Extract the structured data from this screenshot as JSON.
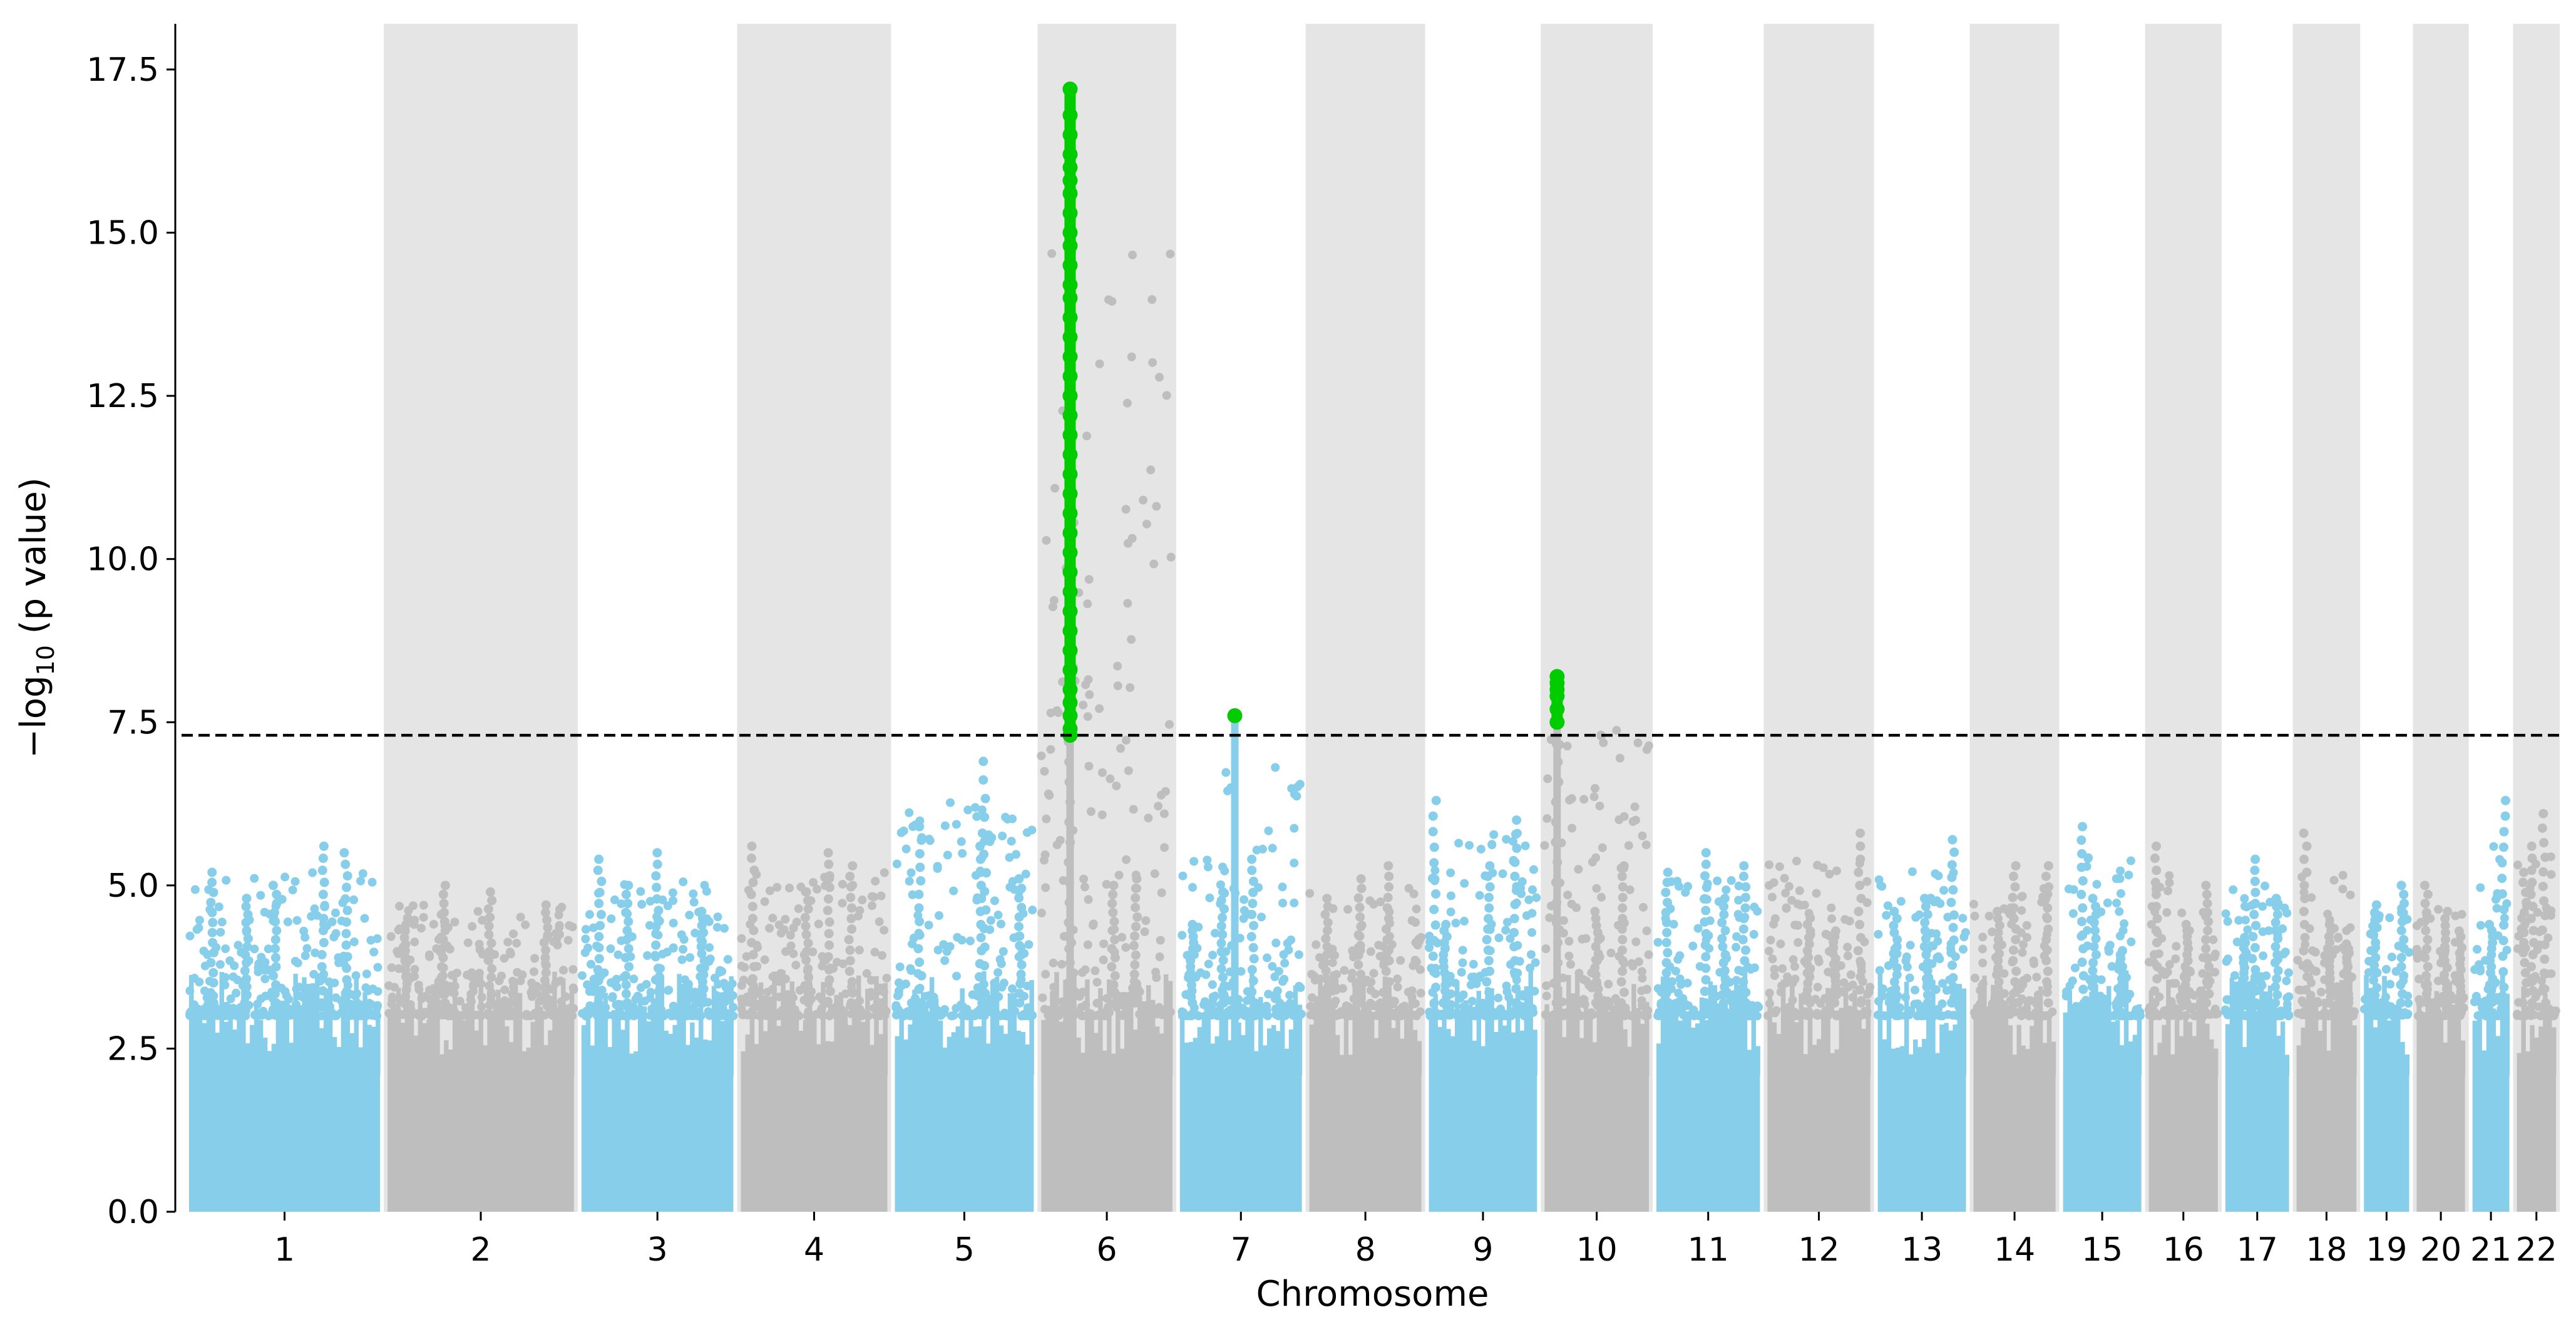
{
  "chart_data": {
    "type": "scatter",
    "subtype": "manhattan",
    "title": "",
    "xlabel": "Chromosome",
    "ylabel": "−log₁₀ (p value)",
    "ylabel_parts": {
      "prefix": "−log",
      "subscript": "10",
      "suffix": " (p value)"
    },
    "ylim": [
      0,
      18.2
    ],
    "yticks": [
      0.0,
      2.5,
      5.0,
      7.5,
      10.0,
      12.5,
      15.0,
      17.5
    ],
    "ytick_labels": [
      "0.0",
      "2.5",
      "5.0",
      "7.5",
      "10.0",
      "12.5",
      "15.0",
      "17.5"
    ],
    "significance_threshold": 7.3,
    "grid": false,
    "legend": "none",
    "colors": {
      "odd_chromosome": "#87CEEB",
      "even_chromosome": "#BEBEBE",
      "significant": "#00CC00",
      "band_shading": "#E5E5E5",
      "threshold_line": "#000000"
    },
    "chromosomes": [
      {
        "label": "1",
        "span_mb": 249,
        "max": 5.6,
        "peaks": [
          [
            0.7,
            5.6
          ],
          [
            0.82,
            5.5
          ],
          [
            0.12,
            5.2
          ],
          [
            0.45,
            5.0
          ],
          [
            0.3,
            4.8
          ]
        ]
      },
      {
        "label": "2",
        "span_mb": 243,
        "max": 5.0,
        "peaks": [
          [
            0.3,
            5.0
          ],
          [
            0.55,
            4.9
          ],
          [
            0.85,
            4.7
          ],
          [
            0.1,
            4.5
          ]
        ]
      },
      {
        "label": "3",
        "span_mb": 198,
        "max": 5.5,
        "peaks": [
          [
            0.5,
            5.5
          ],
          [
            0.12,
            5.4
          ],
          [
            0.3,
            5.0
          ],
          [
            0.8,
            4.6
          ]
        ]
      },
      {
        "label": "4",
        "span_mb": 191,
        "max": 5.6,
        "peaks": [
          [
            0.08,
            5.6
          ],
          [
            0.6,
            5.5
          ],
          [
            0.75,
            5.3
          ],
          [
            0.45,
            4.9
          ]
        ]
      },
      {
        "label": "5",
        "span_mb": 181,
        "max": 6.9,
        "peaks": [
          [
            0.65,
            6.9
          ],
          [
            0.18,
            5.9
          ],
          [
            0.62,
            5.8
          ],
          [
            0.9,
            5.1
          ]
        ]
      },
      {
        "label": "6",
        "span_mb": 171,
        "max": 17.2,
        "peaks": [
          [
            0.22,
            7.2
          ],
          [
            0.72,
            5.1
          ],
          [
            0.55,
            5.0
          ]
        ]
      },
      {
        "label": "7",
        "span_mb": 159,
        "max": 7.6,
        "peaks": [
          [
            0.6,
            5.4
          ],
          [
            0.35,
            4.9
          ],
          [
            0.1,
            4.4
          ]
        ]
      },
      {
        "label": "8",
        "span_mb": 146,
        "max": 5.3,
        "peaks": [
          [
            0.7,
            5.3
          ],
          [
            0.45,
            5.1
          ],
          [
            0.15,
            4.8
          ]
        ]
      },
      {
        "label": "9",
        "span_mb": 141,
        "max": 6.3,
        "peaks": [
          [
            0.05,
            6.3
          ],
          [
            0.15,
            4.4
          ],
          [
            0.8,
            6.0
          ],
          [
            0.55,
            5.3
          ]
        ]
      },
      {
        "label": "10",
        "span_mb": 136,
        "max": 8.2,
        "peaks": [
          [
            0.12,
            7.2
          ],
          [
            0.75,
            5.3
          ],
          [
            0.5,
            4.6
          ]
        ]
      },
      {
        "label": "11",
        "span_mb": 135,
        "max": 5.5,
        "peaks": [
          [
            0.85,
            5.3
          ],
          [
            0.48,
            5.5
          ],
          [
            0.1,
            5.2
          ],
          [
            0.65,
            4.8
          ]
        ]
      },
      {
        "label": "12",
        "span_mb": 134,
        "max": 5.8,
        "peaks": [
          [
            0.9,
            5.8
          ],
          [
            0.4,
            4.5
          ],
          [
            0.65,
            4.3
          ]
        ]
      },
      {
        "label": "13",
        "span_mb": 115,
        "max": 5.7,
        "peaks": [
          [
            0.85,
            5.7
          ],
          [
            0.55,
            4.8
          ],
          [
            0.2,
            4.6
          ]
        ]
      },
      {
        "label": "14",
        "span_mb": 107,
        "max": 5.3,
        "peaks": [
          [
            0.5,
            5.3
          ],
          [
            0.9,
            5.3
          ],
          [
            0.3,
            4.6
          ]
        ]
      },
      {
        "label": "15",
        "span_mb": 102,
        "max": 5.9,
        "peaks": [
          [
            0.25,
            5.9
          ],
          [
            0.4,
            4.8
          ],
          [
            0.75,
            4.0
          ]
        ]
      },
      {
        "label": "16",
        "span_mb": 90,
        "max": 5.6,
        "peaks": [
          [
            0.1,
            5.6
          ],
          [
            0.85,
            5.0
          ],
          [
            0.55,
            4.4
          ]
        ]
      },
      {
        "label": "17",
        "span_mb": 83,
        "max": 5.4,
        "peaks": [
          [
            0.3,
            4.2
          ],
          [
            0.45,
            5.4
          ],
          [
            0.8,
            4.8
          ]
        ]
      },
      {
        "label": "18",
        "span_mb": 78,
        "max": 5.8,
        "peaks": [
          [
            0.15,
            5.8
          ],
          [
            0.55,
            4.4
          ],
          [
            0.85,
            4.1
          ]
        ]
      },
      {
        "label": "19",
        "span_mb": 59,
        "max": 5.0,
        "peaks": [
          [
            0.25,
            4.7
          ],
          [
            0.85,
            5.0
          ]
        ]
      },
      {
        "label": "20",
        "span_mb": 63,
        "max": 5.0,
        "peaks": [
          [
            0.2,
            5.0
          ],
          [
            0.6,
            4.6
          ],
          [
            0.9,
            4.3
          ]
        ]
      },
      {
        "label": "21",
        "span_mb": 48,
        "max": 6.3,
        "peaks": [
          [
            0.85,
            6.3
          ],
          [
            0.5,
            4.4
          ]
        ]
      },
      {
        "label": "22",
        "span_mb": 51,
        "max": 6.1,
        "peaks": [
          [
            0.7,
            6.1
          ],
          [
            0.4,
            5.6
          ],
          [
            0.2,
            5.2
          ]
        ]
      }
    ],
    "significant_hits": [
      {
        "chromosome": "6",
        "position_frac": 0.22,
        "min": 7.3,
        "max": 17.2,
        "points": [
          17.2,
          16.8,
          16.5,
          16.2,
          16.0,
          15.8,
          15.6,
          15.3,
          15.0,
          14.8,
          14.5,
          14.2,
          14.0,
          13.7,
          13.4,
          13.1,
          12.8,
          12.5,
          12.2,
          11.9,
          11.6,
          11.3,
          11.0,
          10.7,
          10.4,
          10.1,
          9.8,
          9.5,
          9.2,
          8.9,
          8.6,
          8.3,
          8.0,
          7.8,
          7.6,
          7.4,
          7.3
        ]
      },
      {
        "chromosome": "7",
        "position_frac": 0.45,
        "min": 7.6,
        "max": 7.6,
        "points": [
          7.6
        ]
      },
      {
        "chromosome": "10",
        "position_frac": 0.12,
        "min": 7.5,
        "max": 8.2,
        "points": [
          8.2,
          8.1,
          8.0,
          7.9,
          7.7,
          7.5
        ]
      }
    ],
    "xtick_labels": [
      "1",
      "2",
      "3",
      "4",
      "5",
      "6",
      "7",
      "8",
      "9",
      "10",
      "11",
      "12",
      "13",
      "14",
      "15",
      "16",
      "17",
      "18",
      "19",
      "20",
      "21",
      "22"
    ]
  }
}
